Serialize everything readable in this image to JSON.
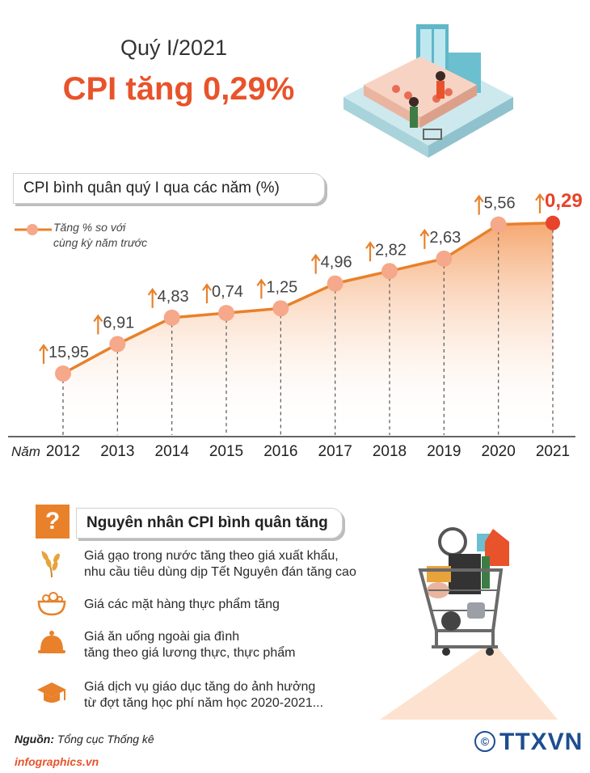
{
  "header": {
    "subtitle": "Quý I/2021",
    "headline": "CPI tăng 0,29%"
  },
  "chart_data": {
    "type": "line",
    "title": "CPI bình quân quý I qua các năm (%)",
    "xlabel": "Năm",
    "categories": [
      "2012",
      "2013",
      "2014",
      "2015",
      "2016",
      "2017",
      "2018",
      "2019",
      "2020",
      "2021"
    ],
    "series": [
      {
        "name": "Tăng % so với cùng kỳ năm trước",
        "values": [
          15.95,
          6.91,
          4.83,
          0.74,
          1.25,
          4.96,
          2.82,
          2.63,
          5.56,
          0.29
        ],
        "labels": [
          "15,95",
          "6,91",
          "4,83",
          "0,74",
          "1,25",
          "4,96",
          "2,82",
          "2,63",
          "5,56",
          "0,29"
        ]
      }
    ],
    "legend": "top-left",
    "grid": false,
    "colors": {
      "line": "#e8812a",
      "marker": "#f5a88a",
      "highlight": "#e8432b",
      "arrow": "#e8812a"
    }
  },
  "legend": {
    "line1": "Tăng % so với",
    "line2": "cùng kỳ năm trước"
  },
  "causes": {
    "title": "Nguyên nhân CPI bình quân tăng",
    "question_mark": "?",
    "items": [
      {
        "icon": "rice-icon",
        "line1": "Giá gạo trong nước tăng theo giá xuất khẩu,",
        "line2": "nhu cầu tiêu dùng dịp Tết Nguyên đán tăng cao"
      },
      {
        "icon": "food-bowl-icon",
        "line1": "Giá các mặt hàng thực phẩm tăng",
        "line2": ""
      },
      {
        "icon": "cloche-icon",
        "line1": "Giá ăn uống ngoài gia đình",
        "line2": "tăng theo giá lương thực, thực phẩm"
      },
      {
        "icon": "graduation-cap-icon",
        "line1": "Giá dịch vụ giáo dục tăng do ảnh hưởng",
        "line2": "từ đợt tăng học phí năm học 2020-2021..."
      }
    ]
  },
  "footer": {
    "source_label": "Nguồn:",
    "source_value": "Tổng cục Thống kê",
    "site": "infographics.vn",
    "copyright": "©",
    "agency": "TTXVN"
  }
}
